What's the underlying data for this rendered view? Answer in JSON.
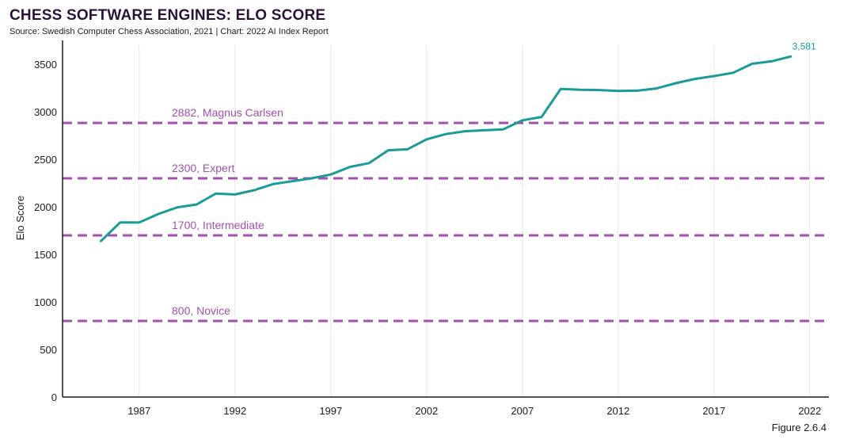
{
  "header": {
    "title": "CHESS SOFTWARE ENGINES: ELO SCORE",
    "subtitle": "Source: Swedish Computer Chess Association, 2021 | Chart: 2022 AI Index Report",
    "figure_label": "Figure 2.6.4"
  },
  "chart_data": {
    "type": "line",
    "title": "CHESS SOFTWARE ENGINES: ELO SCORE",
    "xlabel": "",
    "ylabel": "Elo Score",
    "xlim": [
      1983,
      2023
    ],
    "ylim": [
      0,
      3700
    ],
    "x_ticks": [
      1987,
      1992,
      1997,
      2002,
      2007,
      2012,
      2017,
      2022
    ],
    "y_ticks": [
      0,
      500,
      1000,
      1500,
      2000,
      2500,
      3000,
      3500
    ],
    "grid": "vertical",
    "line_color": "#1a9a98",
    "reference_color": "#a34fb0",
    "series": [
      {
        "x": [
          1985,
          1986,
          1987,
          1988,
          1989,
          1990,
          1991,
          1992,
          1993,
          1994,
          1995,
          1996,
          1997,
          1998,
          1999,
          2000,
          2001,
          2002,
          2003,
          2004,
          2005,
          2006,
          2007,
          2008,
          2009,
          2010,
          2011,
          2012,
          2013,
          2014,
          2015,
          2016,
          2017,
          2018,
          2019,
          2020,
          2021
        ],
        "y": [
          1640,
          1835,
          1835,
          1925,
          1995,
          2025,
          2140,
          2130,
          2175,
          2240,
          2270,
          2300,
          2340,
          2420,
          2460,
          2595,
          2605,
          2710,
          2765,
          2795,
          2805,
          2815,
          2910,
          2945,
          3240,
          3232,
          3228,
          3218,
          3222,
          3245,
          3300,
          3345,
          3375,
          3410,
          3505,
          3530,
          3581
        ]
      }
    ],
    "reference_lines": [
      {
        "value": 2882,
        "label": "2882, Magnus Carlsen"
      },
      {
        "value": 2300,
        "label": "2300, Expert"
      },
      {
        "value": 1700,
        "label": "1700, Intermediate"
      },
      {
        "value": 800,
        "label": "800, Novice"
      }
    ],
    "end_label": "3,581"
  }
}
